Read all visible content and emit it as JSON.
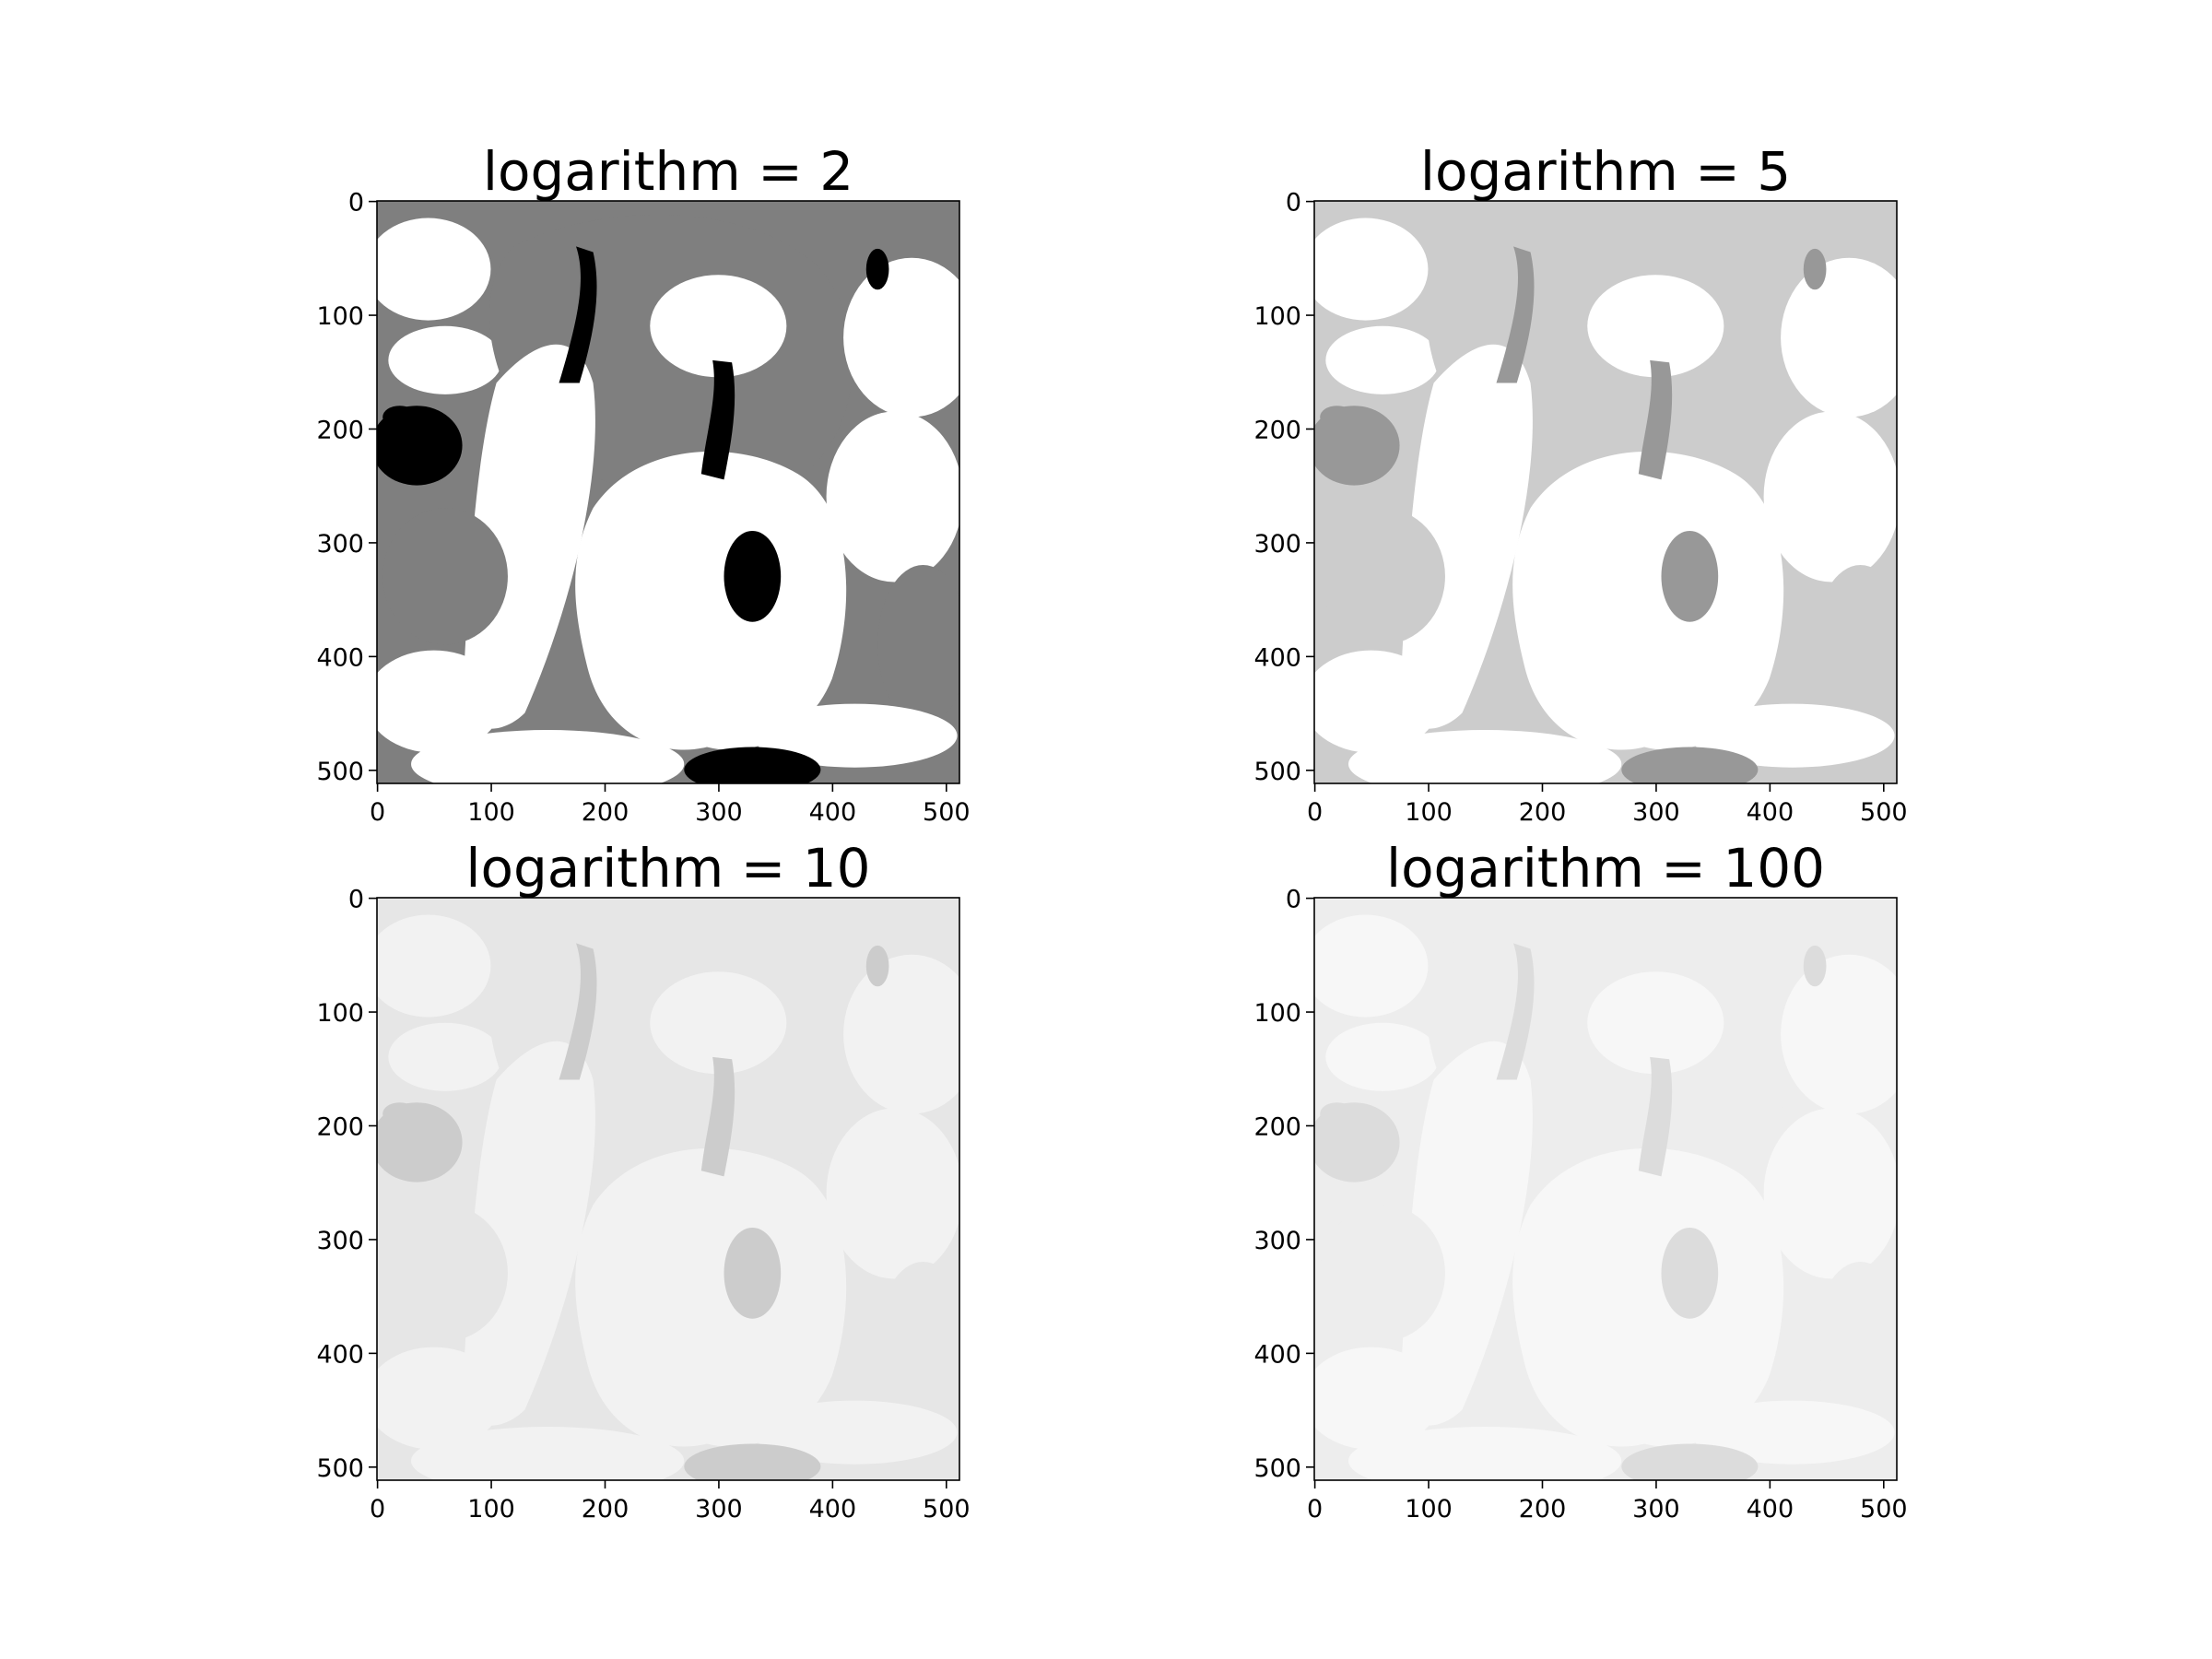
{
  "figure": {
    "panels": [
      {
        "title": "logarithm = 2",
        "levels": [
          "#ffffff",
          "#7f7f7f",
          "#000000"
        ],
        "xticks": [
          "0",
          "100",
          "200",
          "300",
          "400",
          "500"
        ],
        "yticks": [
          "0",
          "100",
          "200",
          "300",
          "400",
          "500"
        ]
      },
      {
        "title": "logarithm = 5",
        "levels": [
          "#ffffff",
          "#cccccc",
          "#989898"
        ],
        "xticks": [
          "0",
          "100",
          "200",
          "300",
          "400",
          "500"
        ],
        "yticks": [
          "0",
          "100",
          "200",
          "300",
          "400",
          "500"
        ]
      },
      {
        "title": "logarithm = 10",
        "levels": [
          "#f2f2f2",
          "#e6e6e6",
          "#cccccc",
          "#b3b3b3"
        ],
        "xticks": [
          "0",
          "100",
          "200",
          "300",
          "400",
          "500"
        ],
        "yticks": [
          "0",
          "100",
          "200",
          "300",
          "400",
          "500"
        ]
      },
      {
        "title": "logarithm = 100",
        "levels": [
          "#f7f7f7",
          "#ededed",
          "#dcdcdc",
          "#c8c8c8"
        ],
        "xticks": [
          "0",
          "100",
          "200",
          "300",
          "400",
          "500"
        ],
        "yticks": [
          "0",
          "100",
          "200",
          "300",
          "400",
          "500"
        ]
      }
    ],
    "image_extent": [
      0,
      511
    ],
    "tick_values": [
      0,
      100,
      200,
      300,
      400,
      500
    ]
  }
}
